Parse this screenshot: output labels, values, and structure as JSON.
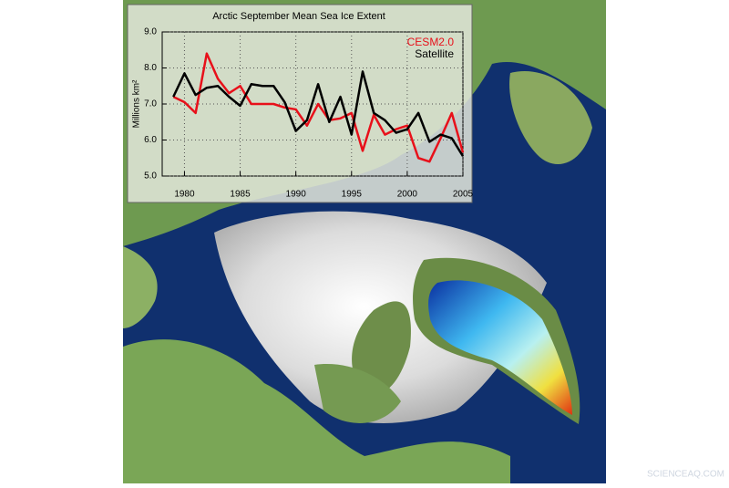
{
  "chart_data": {
    "type": "line",
    "title": "Arctic September Mean Sea Ice Extent",
    "ylabel": "Millions km²",
    "x": [
      1979,
      1980,
      1981,
      1982,
      1983,
      1984,
      1985,
      1986,
      1987,
      1988,
      1989,
      1990,
      1991,
      1992,
      1993,
      1994,
      1995,
      1996,
      1997,
      1998,
      1999,
      2000,
      2001,
      2002,
      2003,
      2004,
      2005
    ],
    "series": [
      {
        "name": "CESM2.0",
        "color": "#e8101a",
        "values": [
          7.2,
          7.05,
          6.75,
          8.4,
          7.7,
          7.3,
          7.5,
          7.0,
          7.0,
          7.0,
          6.9,
          6.85,
          6.4,
          7.0,
          6.55,
          6.6,
          6.75,
          5.7,
          6.7,
          6.15,
          6.3,
          6.4,
          5.5,
          5.4,
          6.05,
          6.75,
          5.65
        ]
      },
      {
        "name": "Satellite",
        "color": "#000000",
        "values": [
          7.2,
          7.85,
          7.25,
          7.45,
          7.5,
          7.2,
          6.95,
          7.55,
          7.5,
          7.5,
          7.05,
          6.25,
          6.55,
          7.55,
          6.5,
          7.2,
          6.15,
          7.9,
          6.75,
          6.55,
          6.2,
          6.3,
          6.75,
          5.95,
          6.15,
          6.05,
          5.55
        ]
      }
    ],
    "xlim": [
      1978,
      2005
    ],
    "xticks": [
      1980,
      1985,
      1990,
      1995,
      2000,
      2005
    ],
    "ylim": [
      5,
      9
    ],
    "yticks": [
      {
        "value": 5,
        "label": "5.0"
      },
      {
        "value": 6,
        "label": "6.0"
      },
      {
        "value": 7,
        "label": "7.0"
      },
      {
        "value": 8,
        "label": "8.0"
      },
      {
        "value": 9,
        "label": "9.0"
      }
    ],
    "grid": true,
    "legend": "upper right"
  },
  "watermark": "SCIENCEAQ.COM"
}
